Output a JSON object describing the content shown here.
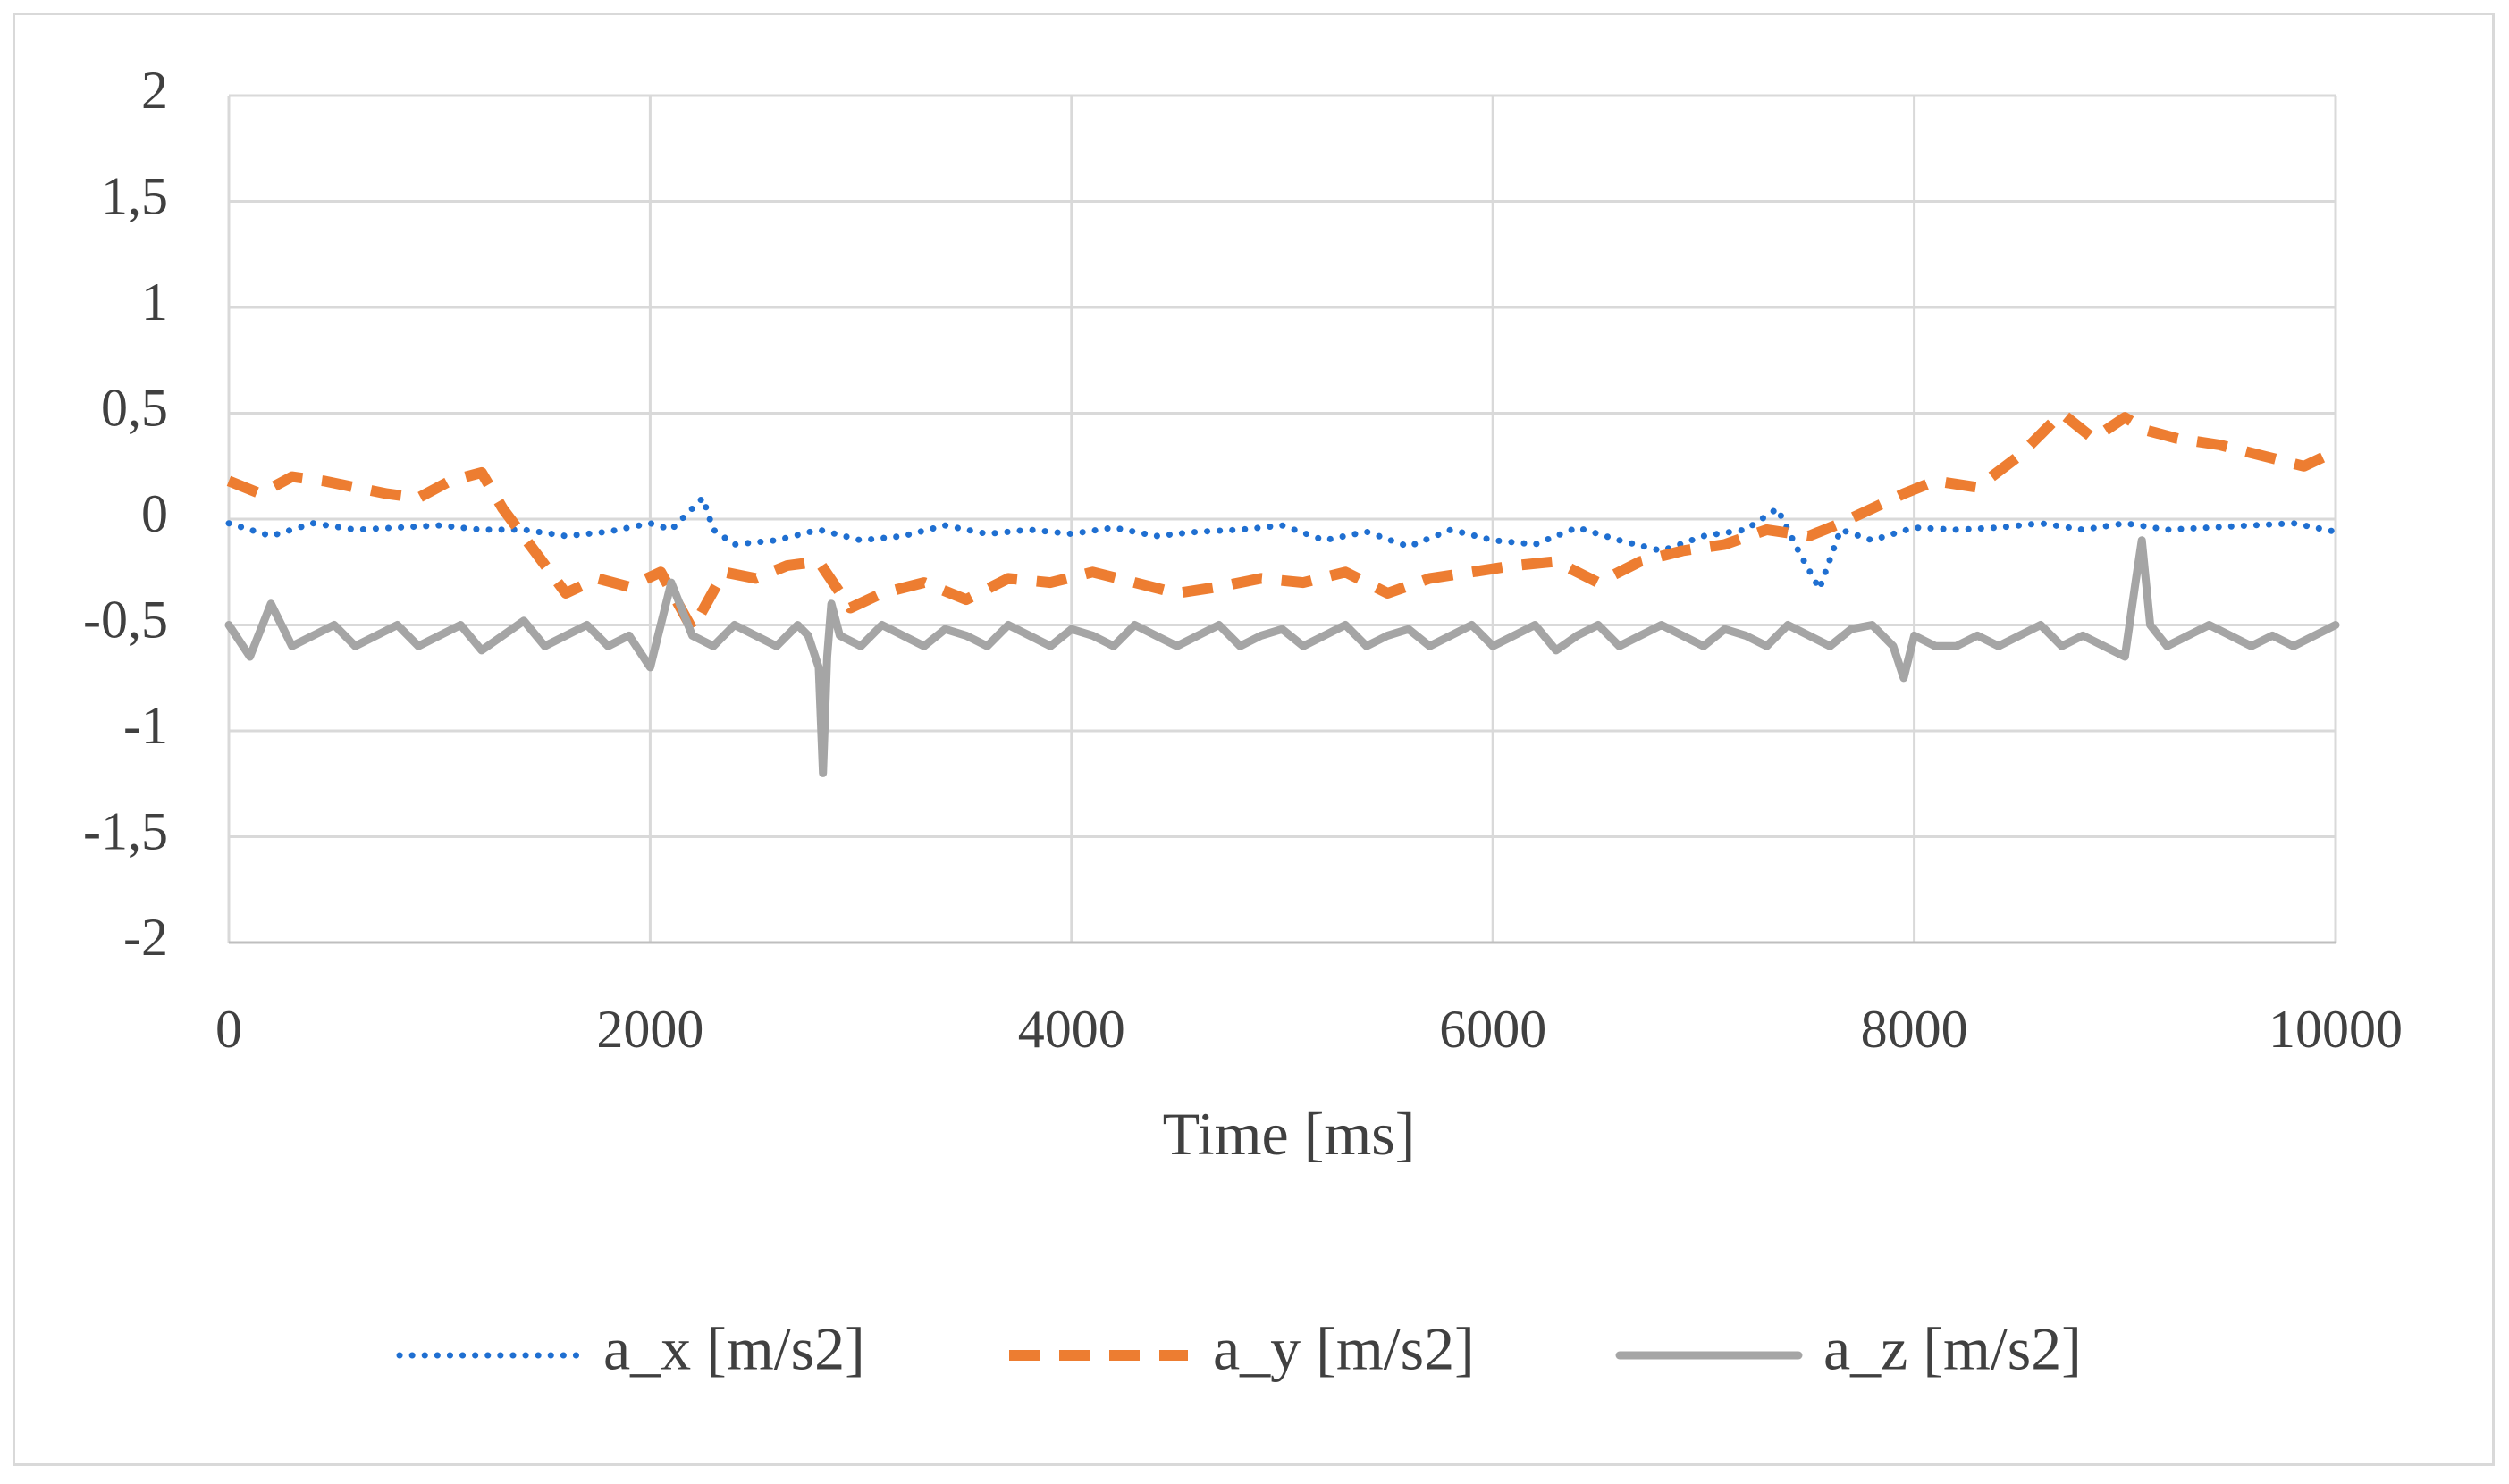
{
  "chart_data": {
    "type": "line",
    "title": "",
    "xlabel": "Time [ms]",
    "ylabel": "",
    "xlim": [
      0,
      10000
    ],
    "ylim": [
      -2,
      2
    ],
    "xticks": [
      0,
      2000,
      4000,
      6000,
      8000,
      10000
    ],
    "xtick_labels": [
      "0",
      "2000",
      "4000",
      "6000",
      "8000",
      "10000"
    ],
    "yticks": [
      2,
      1.5,
      1,
      0.5,
      0,
      -0.5,
      -1,
      -1.5,
      -2
    ],
    "ytick_labels": [
      "2",
      "1,5",
      "1",
      "0,5",
      "0",
      "-0,5",
      "-1",
      "-1,5",
      "-2"
    ],
    "grid": true,
    "legend_position": "bottom",
    "series": [
      {
        "name": "a_x [m/s2]",
        "color": "#1f6fd1",
        "style": "dotted",
        "x": [
          0,
          200,
          400,
          600,
          800,
          1000,
          1200,
          1400,
          1600,
          1800,
          2000,
          2100,
          2200,
          2250,
          2300,
          2400,
          2600,
          2800,
          3000,
          3200,
          3400,
          3600,
          3800,
          4000,
          4200,
          4400,
          4600,
          4800,
          5000,
          5200,
          5400,
          5600,
          5800,
          6000,
          6200,
          6400,
          6600,
          6800,
          7000,
          7200,
          7350,
          7450,
          7550,
          7650,
          7800,
          8000,
          8200,
          8400,
          8600,
          8800,
          9000,
          9200,
          9400,
          9600,
          9800,
          10000
        ],
        "values": [
          -0.02,
          -0.08,
          -0.02,
          -0.05,
          -0.04,
          -0.03,
          -0.05,
          -0.05,
          -0.08,
          -0.06,
          -0.02,
          -0.05,
          0.05,
          0.1,
          -0.05,
          -0.12,
          -0.1,
          -0.05,
          -0.1,
          -0.08,
          -0.03,
          -0.07,
          -0.05,
          -0.07,
          -0.04,
          -0.08,
          -0.06,
          -0.05,
          -0.03,
          -0.1,
          -0.06,
          -0.13,
          -0.05,
          -0.1,
          -0.12,
          -0.04,
          -0.1,
          -0.15,
          -0.08,
          -0.05,
          0.05,
          -0.15,
          -0.33,
          -0.05,
          -0.1,
          -0.04,
          -0.05,
          -0.04,
          -0.02,
          -0.05,
          -0.02,
          -0.05,
          -0.04,
          -0.03,
          -0.02,
          -0.06
        ]
      },
      {
        "name": "a_y [m/s2]",
        "color": "#ed7d31",
        "style": "dashed",
        "x": [
          0,
          150,
          300,
          450,
          600,
          750,
          900,
          1050,
          1200,
          1300,
          1450,
          1600,
          1750,
          1900,
          2050,
          2200,
          2350,
          2500,
          2650,
          2800,
          2950,
          3100,
          3300,
          3500,
          3700,
          3900,
          4100,
          4300,
          4500,
          4700,
          4900,
          5100,
          5300,
          5500,
          5700,
          5900,
          6100,
          6300,
          6500,
          6700,
          6900,
          7100,
          7300,
          7500,
          7650,
          7800,
          7950,
          8100,
          8300,
          8500,
          8700,
          8850,
          9000,
          9100,
          9250,
          9450,
          9650,
          9850,
          10000
        ],
        "values": [
          0.18,
          0.12,
          0.2,
          0.18,
          0.15,
          0.12,
          0.1,
          0.18,
          0.22,
          0.05,
          -0.15,
          -0.35,
          -0.28,
          -0.32,
          -0.25,
          -0.52,
          -0.25,
          -0.28,
          -0.22,
          -0.2,
          -0.42,
          -0.35,
          -0.3,
          -0.38,
          -0.28,
          -0.3,
          -0.25,
          -0.3,
          -0.35,
          -0.32,
          -0.28,
          -0.3,
          -0.25,
          -0.35,
          -0.28,
          -0.25,
          -0.22,
          -0.2,
          -0.3,
          -0.2,
          -0.15,
          -0.12,
          -0.05,
          -0.08,
          -0.02,
          0.05,
          0.12,
          0.18,
          0.15,
          0.3,
          0.5,
          0.38,
          0.48,
          0.42,
          0.38,
          0.35,
          0.3,
          0.25,
          0.32
        ]
      },
      {
        "name": "a_z [m/s2]",
        "color": "#a5a5a5",
        "style": "solid",
        "x": [
          0,
          100,
          200,
          300,
          400,
          500,
          600,
          700,
          800,
          900,
          1000,
          1100,
          1200,
          1300,
          1400,
          1500,
          1600,
          1700,
          1800,
          1900,
          2000,
          2050,
          2100,
          2200,
          2300,
          2400,
          2500,
          2600,
          2700,
          2750,
          2800,
          2820,
          2840,
          2860,
          2900,
          3000,
          3100,
          3200,
          3300,
          3400,
          3500,
          3600,
          3700,
          3800,
          3900,
          4000,
          4100,
          4200,
          4300,
          4400,
          4500,
          4600,
          4700,
          4800,
          4900,
          5000,
          5100,
          5200,
          5300,
          5400,
          5500,
          5600,
          5700,
          5800,
          5900,
          6000,
          6100,
          6200,
          6300,
          6400,
          6500,
          6600,
          6700,
          6800,
          6900,
          7000,
          7100,
          7200,
          7300,
          7400,
          7500,
          7600,
          7700,
          7800,
          7900,
          7950,
          8000,
          8100,
          8200,
          8300,
          8400,
          8500,
          8600,
          8700,
          8800,
          8900,
          9000,
          9050,
          9080,
          9120,
          9200,
          9300,
          9400,
          9500,
          9600,
          9700,
          9800,
          9900,
          10000
        ],
        "values": [
          -0.5,
          -0.65,
          -0.4,
          -0.6,
          -0.55,
          -0.5,
          -0.6,
          -0.55,
          -0.5,
          -0.6,
          -0.55,
          -0.5,
          -0.62,
          -0.55,
          -0.48,
          -0.6,
          -0.55,
          -0.5,
          -0.6,
          -0.55,
          -0.7,
          -0.5,
          -0.3,
          -0.55,
          -0.6,
          -0.5,
          -0.55,
          -0.6,
          -0.5,
          -0.55,
          -0.7,
          -1.2,
          -0.65,
          -0.4,
          -0.55,
          -0.6,
          -0.5,
          -0.55,
          -0.6,
          -0.52,
          -0.55,
          -0.6,
          -0.5,
          -0.55,
          -0.6,
          -0.52,
          -0.55,
          -0.6,
          -0.5,
          -0.55,
          -0.6,
          -0.55,
          -0.5,
          -0.6,
          -0.55,
          -0.52,
          -0.6,
          -0.55,
          -0.5,
          -0.6,
          -0.55,
          -0.52,
          -0.6,
          -0.55,
          -0.5,
          -0.6,
          -0.55,
          -0.5,
          -0.62,
          -0.55,
          -0.5,
          -0.6,
          -0.55,
          -0.5,
          -0.55,
          -0.6,
          -0.52,
          -0.55,
          -0.6,
          -0.5,
          -0.55,
          -0.6,
          -0.52,
          -0.5,
          -0.6,
          -0.75,
          -0.55,
          -0.6,
          -0.6,
          -0.55,
          -0.6,
          -0.55,
          -0.5,
          -0.6,
          -0.55,
          -0.6,
          -0.65,
          -0.3,
          -0.1,
          -0.5,
          -0.6,
          -0.55,
          -0.5,
          -0.55,
          -0.6,
          -0.55,
          -0.6,
          -0.55,
          -0.5
        ]
      }
    ]
  }
}
